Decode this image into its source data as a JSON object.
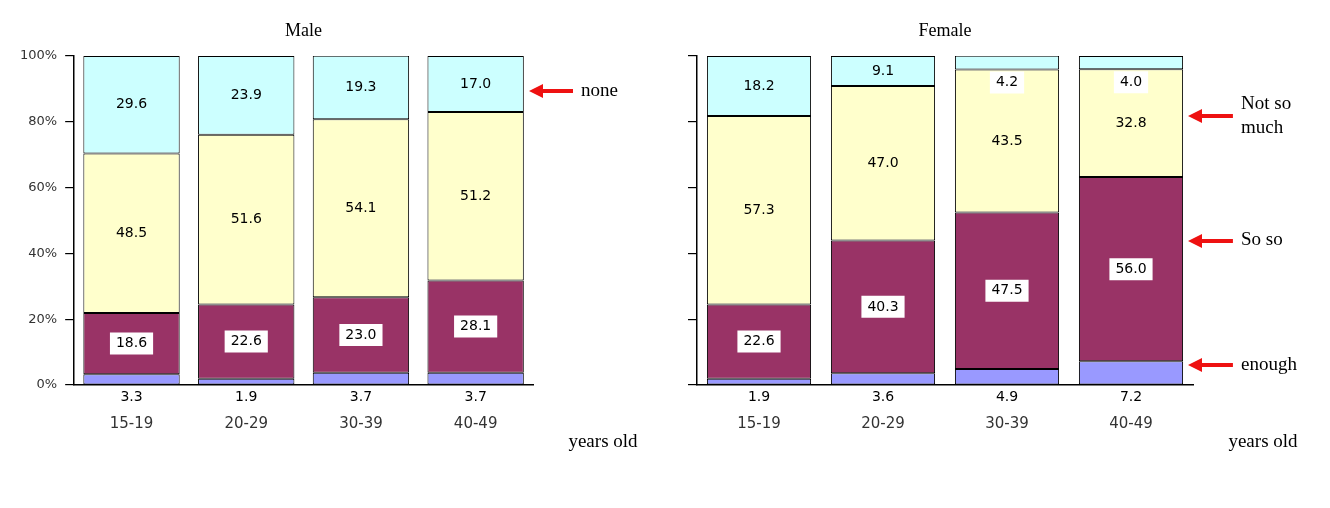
{
  "chart_data": [
    {
      "type": "bar",
      "title": "Male",
      "xlabel": "years old",
      "stacked": true,
      "legend": false,
      "grid": false,
      "categories": [
        "15-19",
        "20-29",
        "30-39",
        "40-49"
      ],
      "series": [
        {
          "color": "#9999ff",
          "values": [
            3.3,
            1.9,
            3.7,
            3.7
          ],
          "value_labels": [
            "3.3",
            "1.9",
            "3.7",
            "3.7"
          ]
        },
        {
          "color": "#993366",
          "values": [
            18.6,
            22.6,
            23.0,
            28.1
          ],
          "value_labels": [
            "18.6",
            "22.6",
            "23.0",
            "28.1"
          ]
        },
        {
          "color": "#ffffcc",
          "values": [
            48.5,
            51.6,
            54.1,
            51.2
          ],
          "value_labels": [
            "48.5",
            "51.6",
            "54.1",
            "51.2"
          ]
        },
        {
          "color": "#ccffff",
          "values": [
            29.6,
            23.9,
            19.3,
            17.0
          ],
          "value_labels": [
            "29.6",
            "23.9",
            "19.3",
            "17.0"
          ]
        }
      ],
      "ylim": [
        0,
        100
      ],
      "yticks": [
        {
          "value": 0,
          "label": "0%"
        },
        {
          "value": 20,
          "label": "20%"
        },
        {
          "value": 40,
          "label": "40%"
        },
        {
          "value": 60,
          "label": "60%"
        },
        {
          "value": 80,
          "label": "80%"
        },
        {
          "value": 100,
          "label": "100%"
        }
      ],
      "annotations": [
        "none"
      ]
    },
    {
      "type": "bar",
      "title": "Female",
      "xlabel": "years old",
      "stacked": true,
      "legend": false,
      "grid": false,
      "tick_labels": "x",
      "categories": [
        "15-19",
        "20-29",
        "30-39",
        "40-49"
      ],
      "series": [
        {
          "color": "#9999ff",
          "values": [
            1.9,
            3.6,
            4.9,
            7.2
          ],
          "value_labels": [
            "1.9",
            "3.6",
            "4.9",
            "7.2"
          ]
        },
        {
          "color": "#993366",
          "values": [
            22.6,
            40.3,
            47.5,
            56.0
          ],
          "value_labels": [
            "22.6",
            "40.3",
            "47.5",
            "56.0"
          ]
        },
        {
          "color": "#ffffcc",
          "values": [
            57.3,
            47.0,
            43.5,
            32.8
          ],
          "value_labels": [
            "57.3",
            "47.0",
            "43.5",
            "32.8"
          ]
        },
        {
          "color": "#ccffff",
          "values": [
            18.2,
            9.1,
            4.2,
            4.0
          ],
          "value_labels": [
            "18.2",
            "9.1",
            "4.2",
            "4.0"
          ]
        }
      ],
      "ylim": [
        0,
        100
      ],
      "yticks": [
        {
          "value": 0,
          "label": null
        },
        {
          "value": 20,
          "label": null
        },
        {
          "value": 40,
          "label": null
        },
        {
          "value": 60,
          "label": null
        },
        {
          "value": 80,
          "label": null
        },
        {
          "value": 100,
          "label": null
        }
      ],
      "annotations": [
        "Not so much",
        "So so",
        "enough"
      ]
    }
  ]
}
